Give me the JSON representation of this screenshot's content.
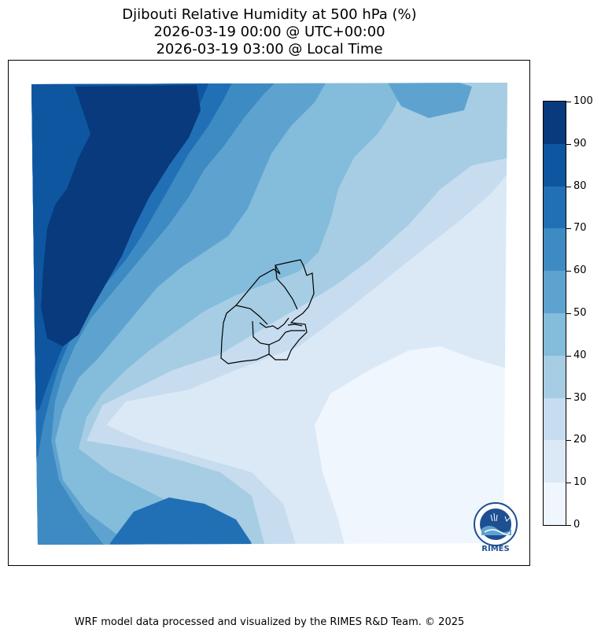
{
  "title": {
    "line1": "Djibouti Relative Humidity at 500 hPa (%)",
    "line2": "2026-03-19 00:00 @ UTC+00:00",
    "line3": "2026-03-19 03:00 @ Local Time"
  },
  "colorbar": {
    "levels": [
      "0",
      "10",
      "20",
      "30",
      "40",
      "50",
      "60",
      "70",
      "80",
      "90",
      "100"
    ],
    "colors": [
      "#f0f6fd",
      "#dbe9f6",
      "#c7dcef",
      "#a6cde3",
      "#84bcdb",
      "#5ea3d0",
      "#3e8ac2",
      "#2170b5",
      "#0f56a0",
      "#083a7d"
    ]
  },
  "map": {
    "region": "Djibouti",
    "variable": "Relative Humidity at 500 hPa",
    "unit": "%"
  },
  "logo": {
    "text": "RIMES"
  },
  "footer": "WRF model data processed and visualized by the RIMES R&D Team. © 2025"
}
